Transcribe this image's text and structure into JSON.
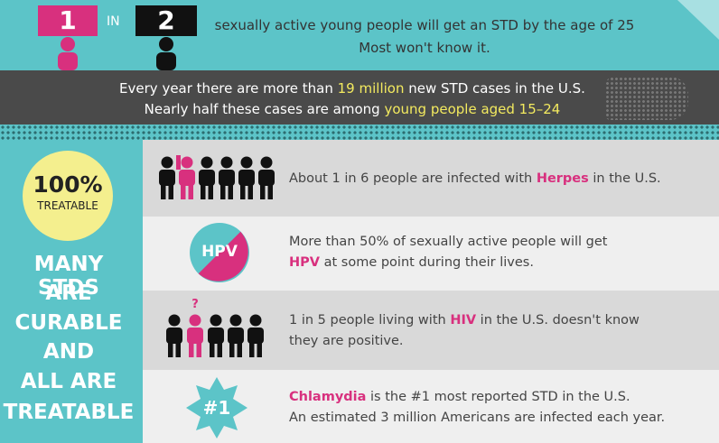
{
  "top": {
    "sign1": "1",
    "in": "IN",
    "sign2": "2",
    "line1": "sexually active young people will get an STD by the age of 25",
    "line2": "Most won't know it."
  },
  "stats": {
    "line1": [
      "Every year there are more than ",
      "19 million",
      " new STD cases in the U.S."
    ],
    "line2": [
      "Nearly half these cases are among ",
      "young people aged 15–24"
    ]
  },
  "side": {
    "badge_value": "100%",
    "badge_label": "TREATABLE",
    "heading": [
      "MANY STDS",
      "ARE",
      "CURABLE",
      "AND",
      "ALL ARE",
      "TREATABLE"
    ]
  },
  "rows": [
    {
      "lines": [
        [
          "About 1 in 6 people are infected with ",
          "Herpes",
          " in the U.S."
        ]
      ]
    },
    {
      "icon": "HPV",
      "lines": [
        [
          "More than 50% of sexually active people will get"
        ],
        [
          "HPV",
          " at some point during their lives."
        ]
      ]
    },
    {
      "icon": "?",
      "lines": [
        [
          "1 in 5 people living with ",
          "HIV",
          " in the U.S. doesn't know"
        ],
        [
          "they are positive."
        ]
      ]
    },
    {
      "icon": "#1",
      "lines": [
        [
          "Chlamydia",
          " is the #1 most reported STD in the U.S."
        ],
        [
          "An estimated 3 million Americans are infected each year."
        ]
      ]
    }
  ]
}
